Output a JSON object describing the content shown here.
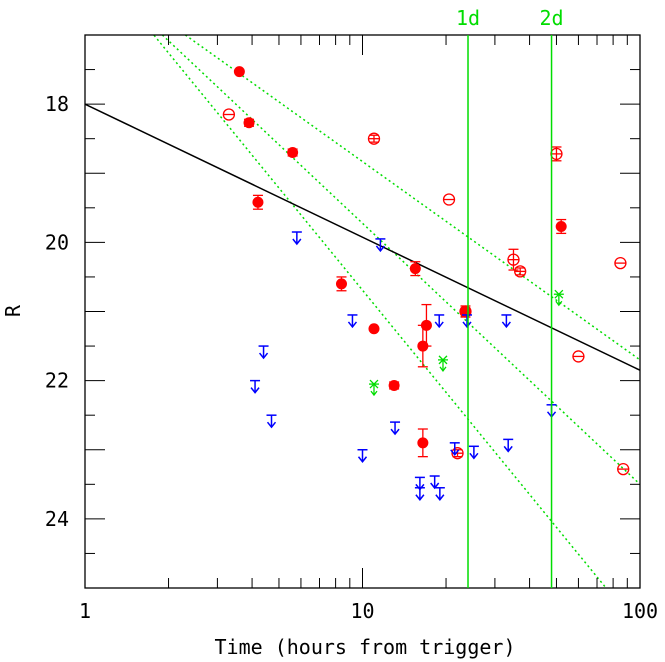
{
  "chart_data": {
    "type": "scatter",
    "title": "",
    "xlabel": "Time (hours from trigger)",
    "ylabel": "R",
    "xscale": "log",
    "xlim": [
      1,
      100
    ],
    "ylim": [
      25,
      17
    ],
    "yreversed": true,
    "x_ticks": [
      1,
      10,
      100
    ],
    "x_tick_labels": [
      "1",
      "10",
      "100"
    ],
    "y_ticks": [
      18,
      20,
      22,
      24
    ],
    "y_tick_labels": [
      "18",
      "20",
      "22",
      "24"
    ],
    "colors": {
      "detection": "#ff0000",
      "upper_limit": "#0000ff",
      "green_marker": "#00dd00",
      "fit_line": "#000000",
      "dotted_lines": "#00dd00",
      "vertical_lines": "#00dd00"
    },
    "vertical_lines": [
      {
        "x": 24,
        "label": "1d"
      },
      {
        "x": 48,
        "label": "2d"
      }
    ],
    "fit_line": {
      "x": [
        1,
        100
      ],
      "y": [
        18.0,
        21.85
      ]
    },
    "dotted_lines": [
      {
        "x": [
          2.3,
          100
        ],
        "y": [
          17.0,
          21.7
        ]
      },
      {
        "x": [
          1.9,
          100
        ],
        "y": [
          17.0,
          23.5
        ]
      },
      {
        "x": [
          1.4,
          100
        ],
        "y": [
          16.5,
          25.6
        ]
      }
    ],
    "series": [
      {
        "name": "",
        "marker": "filled-circle",
        "color": "#ff0000",
        "points": [
          {
            "x": 3.6,
            "y": 17.53,
            "err": 0
          },
          {
            "x": 3.9,
            "y": 18.27,
            "err": 0.05
          },
          {
            "x": 4.2,
            "y": 19.42,
            "err": 0.1
          },
          {
            "x": 5.6,
            "y": 18.7,
            "err": 0.05
          },
          {
            "x": 8.4,
            "y": 20.6,
            "err": 0.1
          },
          {
            "x": 11.0,
            "y": 21.25,
            "err": 0
          },
          {
            "x": 13.0,
            "y": 22.07,
            "err": 0.05
          },
          {
            "x": 15.5,
            "y": 20.38,
            "err": 0.1
          },
          {
            "x": 16.5,
            "y": 21.5,
            "err": 0.3
          },
          {
            "x": 17.0,
            "y": 21.2,
            "err": 0.3
          },
          {
            "x": 16.5,
            "y": 22.9,
            "err": 0.2
          },
          {
            "x": 23.5,
            "y": 21.0,
            "err": 0.08
          },
          {
            "x": 52.0,
            "y": 19.77,
            "err": 0.1
          }
        ]
      },
      {
        "name": "",
        "marker": "open-circle",
        "color": "#ff0000",
        "points": [
          {
            "x": 3.3,
            "y": 18.15,
            "err": 0
          },
          {
            "x": 11.0,
            "y": 18.5,
            "err": 0.05
          },
          {
            "x": 20.5,
            "y": 19.38,
            "err": 0
          },
          {
            "x": 22.0,
            "y": 23.05,
            "err": 0.05
          },
          {
            "x": 23.5,
            "y": 21.0,
            "err": 0.05
          },
          {
            "x": 35.0,
            "y": 20.25,
            "err": 0.15
          },
          {
            "x": 37.0,
            "y": 20.42,
            "err": 0.05
          },
          {
            "x": 50.0,
            "y": 18.72,
            "err": 0.1
          },
          {
            "x": 60.0,
            "y": 21.65,
            "err": 0
          },
          {
            "x": 85.0,
            "y": 20.3,
            "err": 0
          },
          {
            "x": 87.0,
            "y": 23.28,
            "err": 0
          }
        ]
      },
      {
        "name": "",
        "marker": "upper-limit-arrow",
        "color": "#0000ff",
        "points": [
          {
            "x": 4.1,
            "y": 22.0
          },
          {
            "x": 4.4,
            "y": 21.5
          },
          {
            "x": 4.7,
            "y": 22.5
          },
          {
            "x": 5.8,
            "y": 19.85
          },
          {
            "x": 9.2,
            "y": 21.05
          },
          {
            "x": 10.0,
            "y": 23.0
          },
          {
            "x": 11.6,
            "y": 19.95
          },
          {
            "x": 13.1,
            "y": 22.6
          },
          {
            "x": 16.1,
            "y": 23.4
          },
          {
            "x": 16.1,
            "y": 23.55
          },
          {
            "x": 18.2,
            "y": 23.38
          },
          {
            "x": 18.9,
            "y": 21.05
          },
          {
            "x": 19.0,
            "y": 23.55
          },
          {
            "x": 21.5,
            "y": 22.9
          },
          {
            "x": 23.8,
            "y": 21.05
          },
          {
            "x": 25.2,
            "y": 22.95
          },
          {
            "x": 33.0,
            "y": 21.05
          },
          {
            "x": 33.5,
            "y": 22.85
          },
          {
            "x": 48.0,
            "y": 22.35
          }
        ]
      },
      {
        "name": "",
        "marker": "star-arrow",
        "color": "#00dd00",
        "points": [
          {
            "x": 11.0,
            "y": 22.05
          },
          {
            "x": 19.5,
            "y": 21.7
          },
          {
            "x": 51.0,
            "y": 20.75
          }
        ]
      }
    ]
  }
}
